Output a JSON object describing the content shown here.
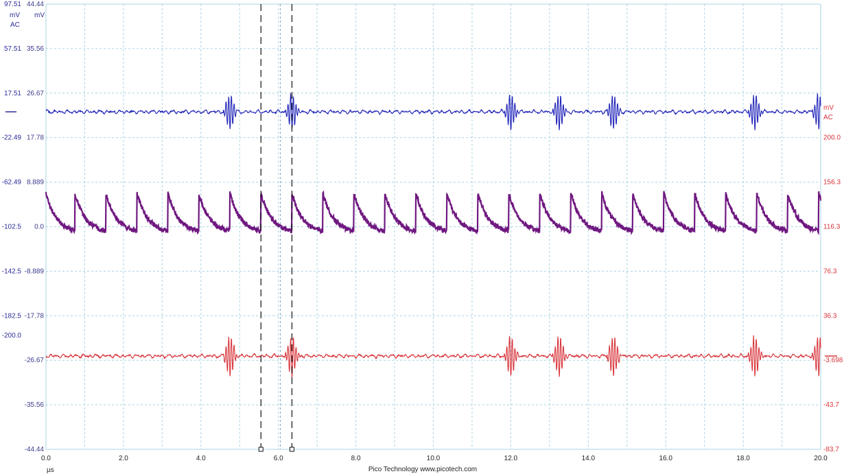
{
  "chart_data": {
    "type": "line",
    "title": "",
    "footer": "Pico Technology   www.picotech.com",
    "x_unit": "µs",
    "x_range": [
      0.0,
      20.0
    ],
    "x_ticks": [
      "0.0",
      "2.0",
      "4.0",
      "6.0",
      "8.0",
      "10.0",
      "12.0",
      "14.0",
      "16.0",
      "18.0",
      "20.0"
    ],
    "grid": true,
    "axes": {
      "left_outer": {
        "color": "#2b2b9a",
        "unit": "mV",
        "coupling": "AC",
        "ticks": [
          "97.51",
          "57.51",
          "17.51",
          "-22.49",
          "-62.49",
          "-102.5",
          "-142.5",
          "-182.5",
          "-200.0"
        ]
      },
      "left_inner": {
        "color": "#3a3a8c",
        "unit": "mV",
        "ticks": [
          "44.44",
          "35.56",
          "26.67",
          "17.78",
          "8.889",
          "0.0",
          "-8.889",
          "-17.78",
          "-26.67",
          "-35.56",
          "-44.44"
        ]
      },
      "right": {
        "color": "#d8343a",
        "unit": "mV",
        "coupling": "AC",
        "ticks": [
          "200.0",
          "156.3",
          "116.3",
          "76.3",
          "36.3",
          "-3.698",
          "-43.7",
          "-83.7"
        ]
      }
    },
    "cursors_us": [
      5.55,
      6.35
    ],
    "extra_marker_us": 6.05,
    "series": [
      {
        "color": "#1f23b8",
        "baseline_mv": 17.51
      },
      {
        "color": "#6f1880",
        "baseline_mv": -102.5,
        "pulse_times_us": [
          0.0,
          0.75,
          1.55,
          2.35,
          3.15,
          3.95,
          4.75,
          5.55,
          6.35,
          7.15,
          7.95,
          8.75,
          9.55,
          10.35,
          11.15,
          11.95,
          12.75,
          13.55,
          14.35,
          15.15,
          15.95,
          16.75,
          17.55,
          18.35,
          19.15,
          19.95
        ]
      },
      {
        "color": "#d8343a",
        "baseline_mv": -3.698
      }
    ],
    "burst_events_us": [
      4.7,
      6.3,
      11.95,
      13.2,
      14.6,
      18.25,
      19.9
    ]
  }
}
